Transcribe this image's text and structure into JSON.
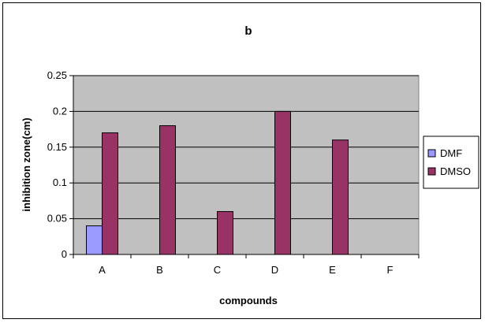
{
  "chart_data": {
    "type": "bar",
    "title": "b",
    "xlabel": "compounds",
    "ylabel": "inhibition zone(cm)",
    "categories": [
      "A",
      "B",
      "C",
      "D",
      "E",
      "F"
    ],
    "series": [
      {
        "name": "DMF",
        "values": [
          0.04,
          0,
          0,
          0,
          0,
          0
        ],
        "color": "#9999ff"
      },
      {
        "name": "DMSO",
        "values": [
          0.17,
          0.18,
          0.06,
          0.2,
          0.16,
          0
        ],
        "color": "#993366"
      }
    ],
    "ylim": [
      0,
      0.25
    ],
    "yticks": [
      0,
      0.05,
      0.1,
      0.15,
      0.2,
      0.25
    ],
    "ytick_labels": [
      "0",
      "0.05",
      "0.1",
      "0.15",
      "0.2",
      "0.25"
    ],
    "grid": true,
    "plot_background": "#c0c0c0",
    "legend_position": "right"
  }
}
